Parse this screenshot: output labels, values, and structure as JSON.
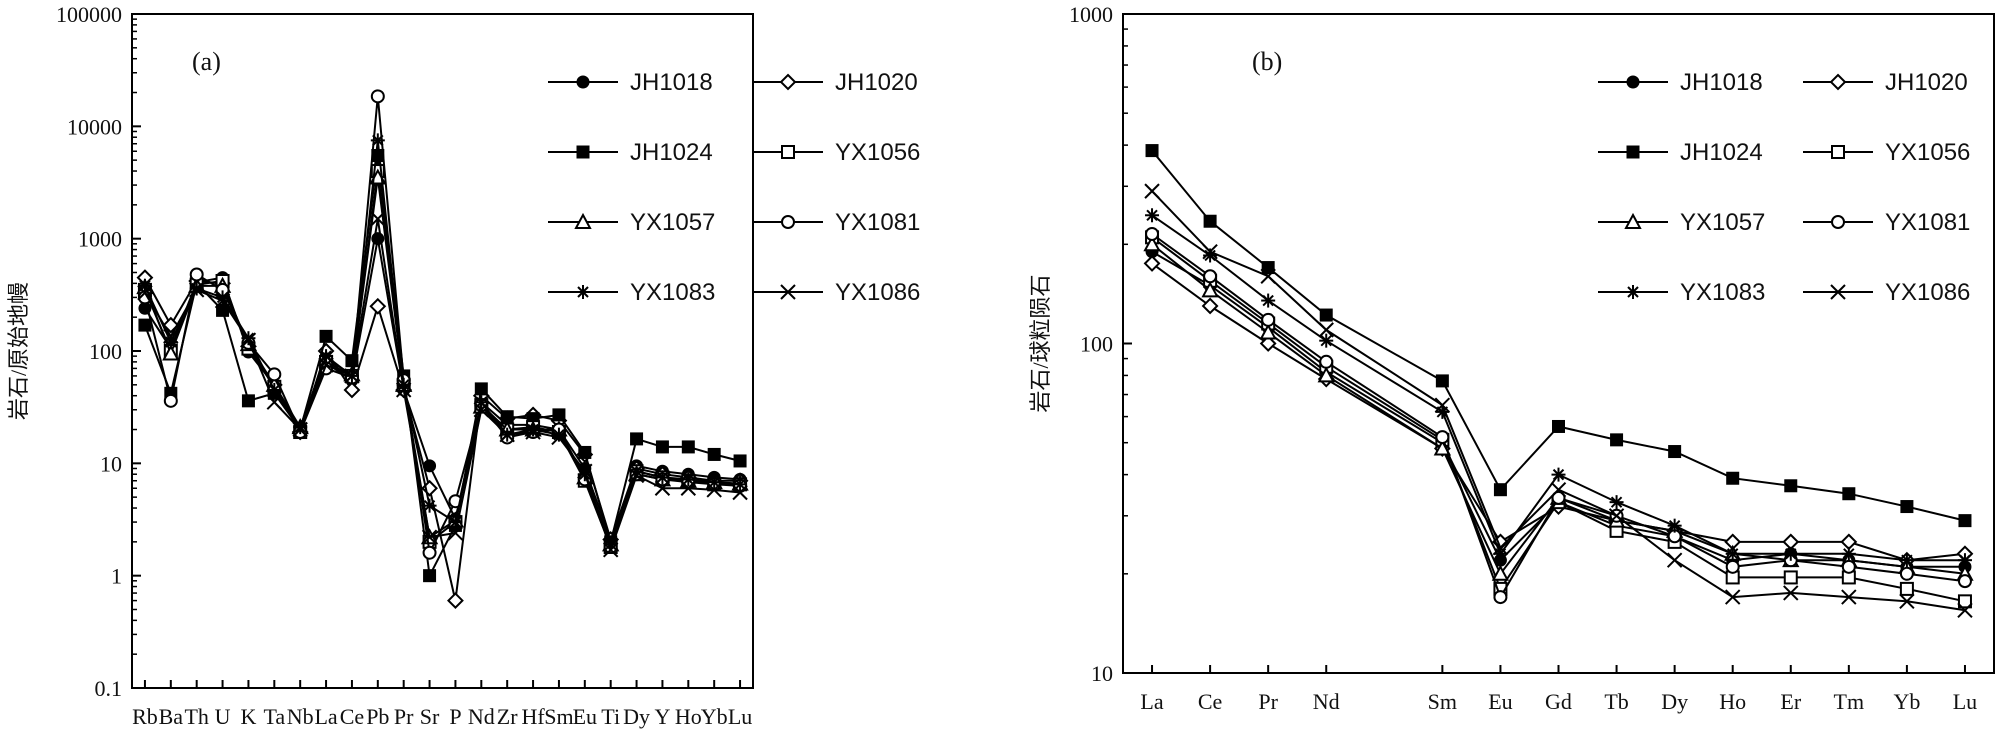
{
  "chart_data": [
    {
      "panel": "(a)",
      "type": "line",
      "ylabel": "岩石/原始地幔",
      "yscale": "log",
      "ylim": [
        0.1,
        100000
      ],
      "yticks": [
        "0.1",
        "1",
        "10",
        "100",
        "1000",
        "10000",
        "100000"
      ],
      "categories": [
        "Rb",
        "Ba",
        "Th",
        "U",
        "K",
        "Ta",
        "Nb",
        "La",
        "Ce",
        "Pb",
        "Pr",
        "Sr",
        "P",
        "Nd",
        "Zr",
        "Hf",
        "Sm",
        "Eu",
        "Ti",
        "Dy",
        "Y",
        "Ho",
        "Yb",
        "Lu"
      ],
      "legend_position": "top-right",
      "series": [
        {
          "name": "JH1018",
          "marker": "filled-circle",
          "values": [
            240,
            105,
            410,
            450,
            98,
            50,
            20,
            78,
            55,
            1000,
            45,
            9.5,
            3.2,
            35,
            22,
            22,
            20,
            9,
            2.1,
            9.5,
            8.5,
            8.0,
            7.5,
            7.2
          ]
        },
        {
          "name": "JH1020",
          "marker": "open-diamond",
          "values": [
            450,
            170,
            420,
            400,
            110,
            50,
            19,
            100,
            45,
            250,
            45,
            6.0,
            0.6,
            40,
            25,
            27,
            24,
            12,
            2.1,
            9.0,
            8.0,
            7.5,
            7.0,
            7.0
          ]
        },
        {
          "name": "JH1024",
          "marker": "filled-square",
          "values": [
            170,
            42,
            400,
            230,
            36,
            42,
            20,
            135,
            82,
            5500,
            60,
            1.0,
            2.8,
            46,
            26,
            25,
            27,
            12.5,
            2.0,
            16.5,
            14,
            14,
            12,
            10.5
          ]
        },
        {
          "name": "YX1056",
          "marker": "open-square",
          "values": [
            350,
            100,
            390,
            420,
            105,
            48,
            19,
            80,
            60,
            4000,
            50,
            2.0,
            3.0,
            33,
            20,
            21,
            19,
            7.0,
            1.8,
            8.5,
            7.5,
            7.0,
            6.5,
            6.5
          ]
        },
        {
          "name": "YX1057",
          "marker": "open-triangle",
          "values": [
            370,
            95,
            380,
            380,
            115,
            50,
            21,
            85,
            62,
            3500,
            50,
            2.2,
            3.1,
            32,
            20,
            20,
            20,
            7.5,
            1.9,
            8.0,
            7.2,
            7.0,
            6.8,
            6.6
          ]
        },
        {
          "name": "YX1081",
          "marker": "open-circle",
          "values": [
            300,
            36,
            480,
            350,
            118,
            62,
            19,
            70,
            58,
            18500,
            55,
            1.6,
            4.6,
            33,
            17,
            19,
            20,
            7.2,
            1.8,
            8.0,
            7.2,
            6.8,
            6.5,
            6.3
          ]
        },
        {
          "name": "YX1083",
          "marker": "asterisk",
          "values": [
            380,
            120,
            360,
            300,
            130,
            45,
            21,
            90,
            60,
            7500,
            50,
            4.2,
            3.0,
            35,
            18,
            20,
            18,
            8.0,
            1.9,
            8.5,
            7.5,
            7.2,
            6.8,
            6.5
          ]
        },
        {
          "name": "YX1086",
          "marker": "cross",
          "values": [
            330,
            135,
            350,
            280,
            125,
            35,
            20,
            75,
            60,
            1500,
            45,
            2.2,
            2.4,
            30,
            18,
            19,
            17,
            8.5,
            1.7,
            7.8,
            6.0,
            6.0,
            5.8,
            5.5
          ]
        }
      ]
    },
    {
      "panel": "(b)",
      "type": "line",
      "ylabel": "岩石/球粒陨石",
      "yscale": "log",
      "ylim": [
        10,
        1000
      ],
      "yticks": [
        "10",
        "100",
        "1000"
      ],
      "categories": [
        "La",
        "Ce",
        "Pr",
        "Nd",
        "Sm",
        "Eu",
        "Gd",
        "Tb",
        "Dy",
        "Ho",
        "Er",
        "Tm",
        "Yb",
        "Lu"
      ],
      "category_slots": [
        0,
        1,
        2,
        3,
        5,
        6,
        7,
        8,
        9,
        10,
        11,
        12,
        13,
        14
      ],
      "legend_position": "top-right",
      "series": [
        {
          "name": "JH1018",
          "marker": "filled-circle",
          "values": [
            190,
            150,
            112,
            82,
            50,
            22,
            33,
            28,
            26,
            22,
            23,
            22,
            21,
            21
          ]
        },
        {
          "name": "JH1020",
          "marker": "open-diamond",
          "values": [
            175,
            130,
            100,
            78,
            48,
            25,
            32,
            29,
            27,
            25,
            25,
            25,
            22,
            23
          ]
        },
        {
          "name": "JH1024",
          "marker": "filled-square",
          "values": [
            385,
            235,
            170,
            122,
            77,
            36,
            56,
            51,
            47,
            39,
            37,
            35,
            32,
            29
          ]
        },
        {
          "name": "YX1056",
          "marker": "open-square",
          "values": [
            210,
            155,
            115,
            85,
            51,
            18,
            33,
            27,
            25,
            19.5,
            19.5,
            19.5,
            18,
            16.5
          ]
        },
        {
          "name": "YX1057",
          "marker": "open-triangle",
          "values": [
            200,
            145,
            108,
            80,
            48,
            20,
            34,
            29,
            27,
            23,
            22,
            22,
            21,
            20
          ]
        },
        {
          "name": "YX1081",
          "marker": "open-circle",
          "values": [
            215,
            160,
            118,
            88,
            52,
            17,
            34,
            30,
            26,
            21,
            22,
            21,
            20,
            19
          ]
        },
        {
          "name": "YX1083",
          "marker": "asterisk",
          "values": [
            245,
            185,
            135,
            102,
            62,
            23,
            40,
            33,
            28,
            23,
            23,
            23,
            22,
            22
          ]
        },
        {
          "name": "YX1086",
          "marker": "cross",
          "values": [
            290,
            190,
            160,
            110,
            65,
            24,
            36,
            30,
            22,
            17,
            17.5,
            17,
            16.5,
            15.5
          ]
        }
      ]
    }
  ]
}
